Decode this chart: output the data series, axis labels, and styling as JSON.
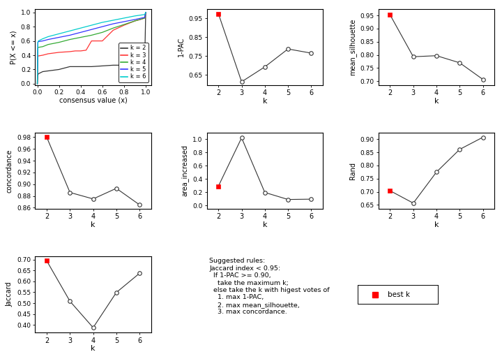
{
  "ecdf": {
    "k2": {
      "x": [
        0.0,
        0.005,
        0.01,
        0.05,
        0.1,
        0.2,
        0.3,
        0.4,
        0.5,
        0.6,
        0.7,
        0.8,
        0.9,
        0.95,
        0.99,
        1.0
      ],
      "y": [
        0.0,
        0.12,
        0.14,
        0.17,
        0.18,
        0.2,
        0.24,
        0.24,
        0.24,
        0.25,
        0.26,
        0.26,
        0.26,
        0.26,
        0.26,
        1.0
      ],
      "color": "#333333"
    },
    "k3": {
      "x": [
        0.0,
        0.005,
        0.01,
        0.05,
        0.1,
        0.2,
        0.3,
        0.35,
        0.4,
        0.45,
        0.5,
        0.6,
        0.7,
        0.8,
        0.9,
        0.95,
        0.99,
        1.0
      ],
      "y": [
        0.0,
        0.38,
        0.39,
        0.4,
        0.42,
        0.44,
        0.45,
        0.46,
        0.46,
        0.47,
        0.6,
        0.6,
        0.75,
        0.82,
        0.88,
        0.9,
        0.92,
        1.0
      ],
      "color": "#FF3333"
    },
    "k4": {
      "x": [
        0.0,
        0.005,
        0.01,
        0.05,
        0.1,
        0.2,
        0.3,
        0.4,
        0.5,
        0.6,
        0.7,
        0.8,
        0.9,
        0.99,
        1.0
      ],
      "y": [
        0.0,
        0.5,
        0.51,
        0.52,
        0.55,
        0.58,
        0.62,
        0.65,
        0.68,
        0.72,
        0.78,
        0.83,
        0.88,
        0.92,
        1.0
      ],
      "color": "#33AA33"
    },
    "k5": {
      "x": [
        0.0,
        0.005,
        0.01,
        0.05,
        0.1,
        0.2,
        0.3,
        0.4,
        0.5,
        0.6,
        0.7,
        0.8,
        0.9,
        0.99,
        1.0
      ],
      "y": [
        0.0,
        0.58,
        0.59,
        0.6,
        0.62,
        0.65,
        0.68,
        0.72,
        0.76,
        0.8,
        0.84,
        0.87,
        0.9,
        0.93,
        1.0
      ],
      "color": "#3333FF"
    },
    "k6": {
      "x": [
        0.0,
        0.005,
        0.01,
        0.05,
        0.1,
        0.2,
        0.3,
        0.4,
        0.5,
        0.6,
        0.7,
        0.8,
        0.9,
        0.99,
        1.0
      ],
      "y": [
        0.0,
        0.58,
        0.6,
        0.63,
        0.66,
        0.7,
        0.74,
        0.78,
        0.82,
        0.86,
        0.89,
        0.92,
        0.95,
        0.97,
        1.0
      ],
      "color": "#00CCCC"
    }
  },
  "one_pac": {
    "k": [
      2,
      3,
      4,
      5,
      6
    ],
    "y": [
      0.974,
      0.613,
      0.692,
      0.787,
      0.765
    ],
    "best_k": 2,
    "ylim": [
      0.595,
      1.0
    ],
    "yticks": [
      0.65,
      0.75,
      0.85,
      0.95
    ],
    "yticklabels": [
      "0.65",
      "0.75",
      "0.85",
      "0.95"
    ]
  },
  "mean_silhouette": {
    "k": [
      2,
      3,
      4,
      5,
      6
    ],
    "y": [
      0.952,
      0.793,
      0.797,
      0.77,
      0.707
    ],
    "best_k": 2,
    "ylim": [
      0.685,
      0.975
    ],
    "yticks": [
      0.7,
      0.75,
      0.8,
      0.85,
      0.9,
      0.95
    ],
    "yticklabels": [
      "0.70",
      "0.75",
      "0.80",
      "0.85",
      "0.90",
      "0.95"
    ]
  },
  "concordance": {
    "k": [
      2,
      3,
      4,
      5,
      6
    ],
    "y": [
      0.98,
      0.886,
      0.875,
      0.893,
      0.865
    ],
    "best_k": 2,
    "ylim": [
      0.858,
      0.988
    ],
    "yticks": [
      0.86,
      0.88,
      0.9,
      0.92,
      0.94,
      0.96,
      0.98
    ],
    "yticklabels": [
      "0.86",
      "0.88",
      "0.90",
      "0.92",
      "0.94",
      "0.96",
      "0.98"
    ]
  },
  "area_increased": {
    "k": [
      2,
      3,
      4,
      5,
      6
    ],
    "y": [
      0.293,
      1.02,
      0.198,
      0.092,
      0.097
    ],
    "best_k": 2,
    "ylim": [
      -0.05,
      1.1
    ],
    "yticks": [
      0.0,
      0.2,
      0.4,
      0.6,
      0.8,
      1.0
    ],
    "yticklabels": [
      "0.0",
      "0.2",
      "0.4",
      "0.6",
      "0.8",
      "1.0"
    ]
  },
  "rand": {
    "k": [
      2,
      3,
      4,
      5,
      6
    ],
    "y": [
      0.704,
      0.657,
      0.775,
      0.861,
      0.907
    ],
    "best_k": 2,
    "ylim": [
      0.635,
      0.925
    ],
    "yticks": [
      0.65,
      0.7,
      0.75,
      0.8,
      0.85,
      0.9
    ],
    "yticklabels": [
      "0.65",
      "0.70",
      "0.75",
      "0.80",
      "0.85",
      "0.90"
    ]
  },
  "jaccard": {
    "k": [
      2,
      3,
      4,
      5,
      6
    ],
    "y": [
      0.694,
      0.509,
      0.388,
      0.549,
      0.637
    ],
    "best_k": 2,
    "ylim": [
      0.365,
      0.715
    ],
    "yticks": [
      0.4,
      0.45,
      0.5,
      0.55,
      0.6,
      0.65,
      0.7
    ],
    "yticklabels": [
      "0.40",
      "0.45",
      "0.50",
      "0.55",
      "0.60",
      "0.65",
      "0.70"
    ]
  },
  "legend_lines": [
    {
      "label": "k = 2",
      "color": "#333333"
    },
    {
      "label": "k = 3",
      "color": "#FF3333"
    },
    {
      "label": "k = 4",
      "color": "#33AA33"
    },
    {
      "label": "k = 5",
      "color": "#3333FF"
    },
    {
      "label": "k = 6",
      "color": "#00CCCC"
    }
  ],
  "annotation_text": "Suggested rules:\nJaccard index < 0.95:\n  If 1-PAC >= 0.90,\n    take the maximum k;\n  else take the k with higest votes of\n    1. max 1-PAC,\n    2. max mean_silhouette,\n    3. max concordance.",
  "background_color": "#FFFFFF",
  "point_color": "#000000",
  "best_k_color": "#FF0000",
  "line_color": "#333333"
}
